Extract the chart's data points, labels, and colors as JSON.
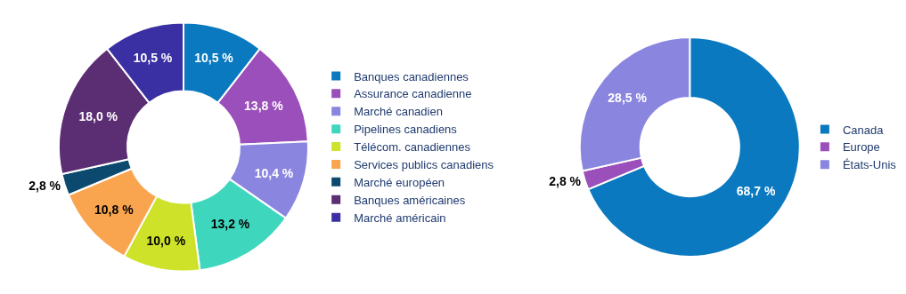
{
  "chart_data": [
    {
      "type": "donut",
      "categories": [
        "Banques canadiennes",
        "Assurance canadienne",
        "Marché canadien",
        "Pipelines canadiens",
        "Télécom. canadiennes",
        "Services publics canadiens",
        "Marché européen",
        "Banques américaines",
        "Marché américain"
      ],
      "values": [
        10.5,
        13.8,
        10.4,
        13.2,
        10.0,
        10.8,
        2.8,
        18.0,
        10.5
      ],
      "colors": [
        "#0a79bf",
        "#9b4fba",
        "#8a86e0",
        "#3fd6be",
        "#cde228",
        "#f9a550",
        "#0b4a6e",
        "#5b2d73",
        "#3a2fa3"
      ],
      "value_labels": [
        "10,5 %",
        "13,8 %",
        "10,4 %",
        "13,2 %",
        "10,0 %",
        "10,8 %",
        "2,8 %",
        "18,0 %",
        "10,5 %"
      ],
      "legend": "right"
    },
    {
      "type": "donut",
      "categories": [
        "Canada",
        "Europe",
        "États-Unis"
      ],
      "values": [
        68.7,
        2.8,
        28.5
      ],
      "colors": [
        "#0a79bf",
        "#9b4fba",
        "#8a86e0"
      ],
      "value_labels": [
        "68,7 %",
        "2,8 %",
        "28,5 %"
      ],
      "legend": "right"
    }
  ]
}
